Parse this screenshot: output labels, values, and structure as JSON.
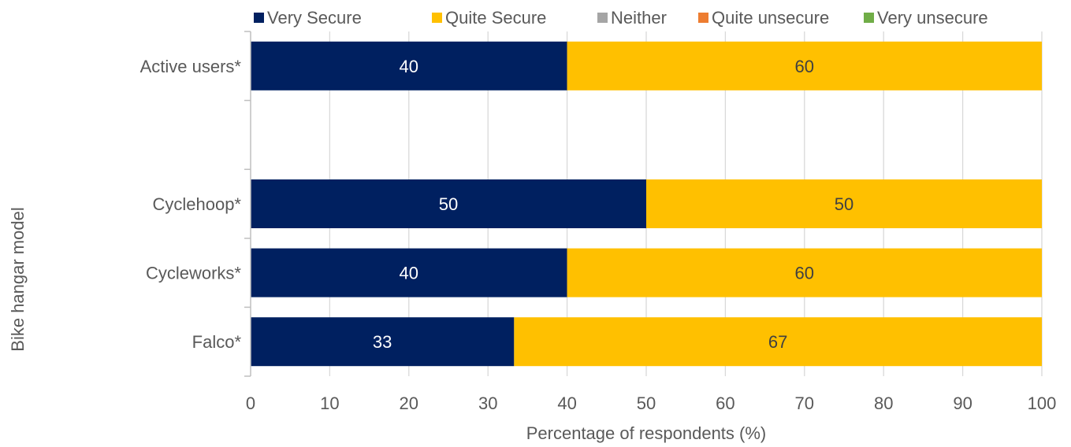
{
  "chart_data": {
    "type": "bar",
    "orientation": "horizontal",
    "stacked": true,
    "xlabel": "Percentage of respondents (%)",
    "ylabel": "Bike hangar model",
    "xlim": [
      0,
      100
    ],
    "xticks": [
      "0",
      "10",
      "20",
      "30",
      "40",
      "50",
      "60",
      "70",
      "80",
      "90",
      "100"
    ],
    "grid": "vertical",
    "legend_position": "top",
    "categories": [
      "Active users*",
      "",
      "Cyclehoop*",
      "Cycleworks*",
      "Falco*"
    ],
    "series": [
      {
        "name": "Very Secure",
        "color": "#002060",
        "values": [
          40,
          null,
          50,
          40,
          33.3
        ],
        "labels": [
          "40",
          "",
          "50",
          "40",
          "33"
        ]
      },
      {
        "name": "Quite Secure",
        "color": "#FFC000",
        "values": [
          60,
          null,
          50,
          60,
          66.7
        ],
        "labels": [
          "60",
          "",
          "50",
          "60",
          "67"
        ]
      },
      {
        "name": "Neither",
        "color": "#A5A5A5",
        "values": [
          0,
          null,
          0,
          0,
          0
        ],
        "labels": [
          "",
          "",
          "",
          "",
          ""
        ]
      },
      {
        "name": "Quite unsecure",
        "color": "#ED7D31",
        "values": [
          0,
          null,
          0,
          0,
          0
        ],
        "labels": [
          "",
          "",
          "",
          "",
          ""
        ]
      },
      {
        "name": "Very unsecure",
        "color": "#70AD47",
        "values": [
          0,
          null,
          0,
          0,
          0
        ],
        "labels": [
          "",
          "",
          "",
          "",
          ""
        ]
      }
    ]
  }
}
